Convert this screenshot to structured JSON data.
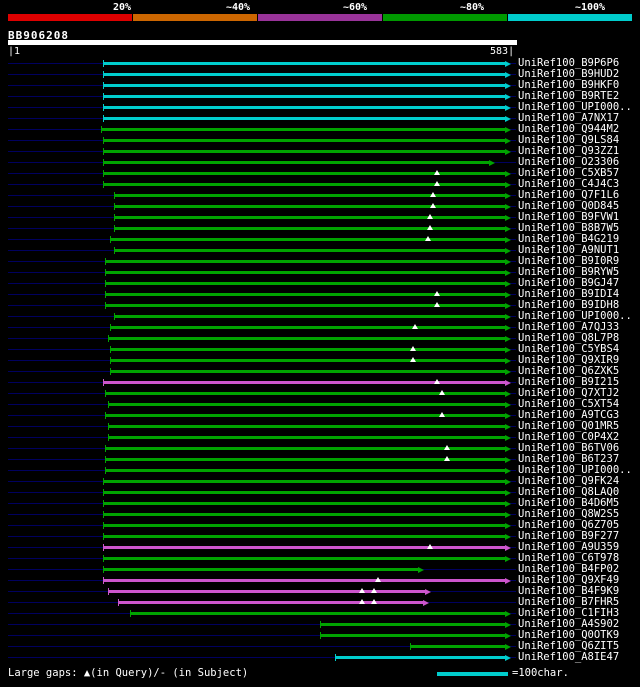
{
  "header": {
    "scale_labels": [
      "20%",
      "~40%",
      "~60%",
      "~80%",
      "~100%"
    ],
    "scale_colors": [
      "#dd0000",
      "#cc6600",
      "#993399",
      "#009900",
      "#00cccc"
    ],
    "query_name": "BB906208",
    "axis_start": "1",
    "axis_end": "583"
  },
  "chart_data": {
    "type": "bar",
    "orientation": "horizontal",
    "title": "BB906208",
    "xlabel": "query position",
    "x_axis": {
      "min": 1,
      "max": 583
    },
    "legend": "color encodes percent identity: red ~20%, orange ~40%, purple ~60%, green ~80%, cyan ~100%",
    "colors": {
      "cyan": "#00cccc",
      "green": "#00a300",
      "magenta": "#cc55cc"
    },
    "hits": [
      {
        "label": "UniRef100_B9P6P6",
        "color": "cyan",
        "start": 110,
        "end": 570
      },
      {
        "label": "UniRef100_B9HUD2",
        "color": "cyan",
        "start": 110,
        "end": 570
      },
      {
        "label": "UniRef100_B9HKF0",
        "color": "cyan",
        "start": 110,
        "end": 570
      },
      {
        "label": "UniRef100_B9RTE2",
        "color": "cyan",
        "start": 110,
        "end": 570
      },
      {
        "label": "UniRef100_UPI000..",
        "color": "cyan",
        "start": 110,
        "end": 570
      },
      {
        "label": "UniRef100_A7NX17",
        "color": "cyan",
        "start": 110,
        "end": 570
      },
      {
        "label": "UniRef100_Q944M2",
        "color": "green",
        "start": 107,
        "end": 570
      },
      {
        "label": "UniRef100_Q9LS84",
        "color": "green",
        "start": 110,
        "end": 570
      },
      {
        "label": "UniRef100_Q93ZZ1",
        "color": "green",
        "start": 110,
        "end": 570
      },
      {
        "label": "UniRef100_O23306",
        "color": "green",
        "start": 110,
        "end": 552
      },
      {
        "label": "UniRef100_C5XB57",
        "color": "green",
        "start": 110,
        "end": 570,
        "query_gaps": [
          493
        ]
      },
      {
        "label": "UniRef100_C4J4C3",
        "color": "green",
        "start": 110,
        "end": 570,
        "query_gaps": [
          493
        ]
      },
      {
        "label": "UniRef100_Q7F1L6",
        "color": "green",
        "start": 122,
        "end": 570,
        "query_gaps": [
          488
        ]
      },
      {
        "label": "UniRef100_Q0D845",
        "color": "green",
        "start": 122,
        "end": 570,
        "query_gaps": [
          488
        ]
      },
      {
        "label": "UniRef100_B9FVW1",
        "color": "green",
        "start": 122,
        "end": 570,
        "query_gaps": [
          484
        ]
      },
      {
        "label": "UniRef100_B8B7W5",
        "color": "green",
        "start": 122,
        "end": 570,
        "query_gaps": [
          484
        ]
      },
      {
        "label": "UniRef100_B4G219",
        "color": "green",
        "start": 118,
        "end": 570,
        "query_gaps": [
          482
        ]
      },
      {
        "label": "UniRef100_A9NUT1",
        "color": "green",
        "start": 122,
        "end": 570
      },
      {
        "label": "UniRef100_B9I0R9",
        "color": "green",
        "start": 112,
        "end": 570
      },
      {
        "label": "UniRef100_B9RYW5",
        "color": "green",
        "start": 112,
        "end": 570
      },
      {
        "label": "UniRef100_B9GJ47",
        "color": "green",
        "start": 112,
        "end": 570
      },
      {
        "label": "UniRef100_B9IDI4",
        "color": "green",
        "start": 112,
        "end": 570,
        "query_gaps": [
          493
        ]
      },
      {
        "label": "UniRef100_B9IDH8",
        "color": "green",
        "start": 112,
        "end": 570,
        "query_gaps": [
          493
        ]
      },
      {
        "label": "UniRef100_UPI000..",
        "color": "green",
        "start": 122,
        "end": 570
      },
      {
        "label": "UniRef100_A7QJ33",
        "color": "green",
        "start": 118,
        "end": 570,
        "query_gaps": [
          467
        ]
      },
      {
        "label": "UniRef100_Q8L7P8",
        "color": "green",
        "start": 115,
        "end": 570
      },
      {
        "label": "UniRef100_C5YBS4",
        "color": "green",
        "start": 118,
        "end": 570,
        "query_gaps": [
          465
        ]
      },
      {
        "label": "UniRef100_Q9XIR9",
        "color": "green",
        "start": 118,
        "end": 570,
        "query_gaps": [
          465
        ]
      },
      {
        "label": "UniRef100_Q6ZXK5",
        "color": "green",
        "start": 118,
        "end": 570
      },
      {
        "label": "UniRef100_B9I215",
        "color": "magenta",
        "start": 110,
        "end": 570,
        "query_gaps": [
          493
        ]
      },
      {
        "label": "UniRef100_Q7XTJ2",
        "color": "green",
        "start": 112,
        "end": 570,
        "query_gaps": [
          498
        ]
      },
      {
        "label": "UniRef100_C5XT54",
        "color": "green",
        "start": 115,
        "end": 570
      },
      {
        "label": "UniRef100_A9TCG3",
        "color": "green",
        "start": 112,
        "end": 570,
        "query_gaps": [
          498
        ]
      },
      {
        "label": "UniRef100_Q01MR5",
        "color": "green",
        "start": 115,
        "end": 570
      },
      {
        "label": "UniRef100_C0P4X2",
        "color": "green",
        "start": 115,
        "end": 570
      },
      {
        "label": "UniRef100_B6TV06",
        "color": "green",
        "start": 112,
        "end": 570,
        "query_gaps": [
          504
        ]
      },
      {
        "label": "UniRef100_B6T237",
        "color": "green",
        "start": 112,
        "end": 570,
        "query_gaps": [
          504
        ]
      },
      {
        "label": "UniRef100_UPI000..",
        "color": "green",
        "start": 112,
        "end": 570
      },
      {
        "label": "UniRef100_Q9FK24",
        "color": "green",
        "start": 110,
        "end": 570
      },
      {
        "label": "UniRef100_Q8LAQ0",
        "color": "green",
        "start": 110,
        "end": 570
      },
      {
        "label": "UniRef100_B4D6M5",
        "color": "green",
        "start": 110,
        "end": 570
      },
      {
        "label": "UniRef100_Q8W2S5",
        "color": "green",
        "start": 110,
        "end": 570
      },
      {
        "label": "UniRef100_Q6Z705",
        "color": "green",
        "start": 110,
        "end": 570
      },
      {
        "label": "UniRef100_B9F277",
        "color": "green",
        "start": 110,
        "end": 570
      },
      {
        "label": "UniRef100_A9U359",
        "color": "magenta",
        "start": 110,
        "end": 570,
        "query_gaps": [
          484
        ]
      },
      {
        "label": "UniRef100_C6T978",
        "color": "green",
        "start": 110,
        "end": 570
      },
      {
        "label": "UniRef100_B4FP02",
        "color": "green",
        "start": 110,
        "end": 471
      },
      {
        "label": "UniRef100_Q9XF49",
        "color": "magenta",
        "start": 110,
        "end": 570,
        "query_gaps": [
          425
        ]
      },
      {
        "label": "UniRef100_B4F9K9",
        "color": "magenta",
        "start": 115,
        "end": 479,
        "query_gaps": [
          407,
          420
        ]
      },
      {
        "label": "UniRef100_B7FHR5",
        "color": "magenta",
        "start": 127,
        "end": 476,
        "query_gaps": [
          407,
          420
        ]
      },
      {
        "label": "UniRef100_C1FIH3",
        "color": "green",
        "start": 141,
        "end": 570
      },
      {
        "label": "UniRef100_A4S902",
        "color": "green",
        "start": 358,
        "end": 570
      },
      {
        "label": "UniRef100_Q0OTK9",
        "color": "green",
        "start": 358,
        "end": 570
      },
      {
        "label": "UniRef100_Q6ZIT5",
        "color": "green",
        "start": 462,
        "end": 570
      },
      {
        "label": "UniRef100_A8IE47",
        "color": "cyan",
        "start": 376,
        "end": 570
      }
    ]
  },
  "footer": {
    "legend_text": "Large gaps: ▲(in Query)/- (in Subject)",
    "scale_unit_label": "=100char.",
    "scale_unit_color": "#00cccc"
  }
}
